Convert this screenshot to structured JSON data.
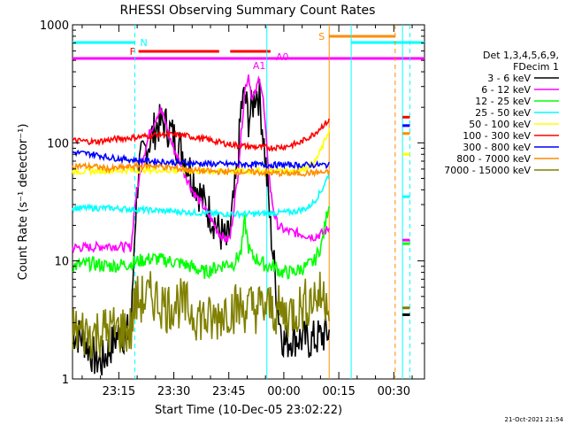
{
  "chart_data": {
    "type": "line",
    "title": "RHESSI Observing Summary Count Rates",
    "xlabel": "Start Time (10-Dec-05 23:02:22)",
    "ylabel": "Count Rate (s⁻¹ detector⁻¹)",
    "y_scale": "log",
    "ylim": [
      1,
      1000
    ],
    "xlim_minutes_from_start": [
      0,
      96
    ],
    "x_ticks": [
      "23:15",
      "23:30",
      "23:45",
      "00:00",
      "00:15",
      "00:30"
    ],
    "y_ticks": [
      "1",
      "10",
      "100",
      "1000"
    ],
    "legend_header": [
      "Det 1,3,4,5,6,9,",
      "FDecim 1"
    ],
    "legend_position": "right",
    "timestamp": "21-Oct-2021 21:54",
    "series": [
      {
        "name": "3 - 6 keV",
        "color": "#000000",
        "points": [
          [
            0,
            2.5
          ],
          [
            3,
            2.2
          ],
          [
            6,
            1.5
          ],
          [
            8,
            1.4
          ],
          [
            12,
            2.3
          ],
          [
            16,
            2.5
          ],
          [
            17,
            20
          ],
          [
            18,
            60
          ],
          [
            20,
            90
          ],
          [
            22,
            120
          ],
          [
            23,
            140
          ],
          [
            25,
            150
          ],
          [
            27,
            120
          ],
          [
            30,
            85
          ],
          [
            33,
            50
          ],
          [
            36,
            30
          ],
          [
            38,
            24
          ],
          [
            40,
            18
          ],
          [
            41,
            16
          ],
          [
            42,
            14
          ],
          [
            43,
            18
          ],
          [
            45,
            60
          ],
          [
            46,
            200
          ],
          [
            47,
            250
          ],
          [
            48,
            160
          ],
          [
            49,
            200
          ],
          [
            50,
            280
          ],
          [
            51,
            240
          ],
          [
            52,
            120
          ],
          [
            53,
            50
          ],
          [
            54,
            20
          ],
          [
            55,
            9
          ],
          [
            56,
            4
          ],
          [
            57,
            2.5
          ],
          [
            58,
            2
          ],
          [
            60,
            2.3
          ],
          [
            62,
            2.2
          ],
          [
            65,
            2.1
          ],
          [
            68,
            2.3
          ],
          [
            70,
            2.5
          ]
        ]
      },
      {
        "name": "6 - 12 keV",
        "color": "#ff00ff",
        "points": [
          [
            0,
            13
          ],
          [
            5,
            13
          ],
          [
            10,
            13.5
          ],
          [
            16,
            13
          ],
          [
            17,
            30
          ],
          [
            19,
            70
          ],
          [
            21,
            120
          ],
          [
            23,
            170
          ],
          [
            24,
            190
          ],
          [
            25,
            160
          ],
          [
            27,
            100
          ],
          [
            30,
            60
          ],
          [
            33,
            38
          ],
          [
            36,
            28
          ],
          [
            38,
            22
          ],
          [
            40,
            17
          ],
          [
            42,
            15
          ],
          [
            43,
            16
          ],
          [
            45,
            50
          ],
          [
            47,
            280
          ],
          [
            48,
            380
          ],
          [
            49,
            230
          ],
          [
            50,
            270
          ],
          [
            51,
            370
          ],
          [
            52,
            230
          ],
          [
            53,
            90
          ],
          [
            54,
            40
          ],
          [
            55,
            25
          ],
          [
            56,
            20
          ],
          [
            58,
            18
          ],
          [
            62,
            17
          ],
          [
            66,
            16
          ],
          [
            68,
            17
          ],
          [
            70,
            19
          ]
        ]
      },
      {
        "name": "12 - 25 keV",
        "color": "#00ff00",
        "points": [
          [
            0,
            9
          ],
          [
            5,
            9.5
          ],
          [
            10,
            9
          ],
          [
            16,
            9.5
          ],
          [
            18,
            10
          ],
          [
            22,
            10.5
          ],
          [
            26,
            10
          ],
          [
            30,
            9.5
          ],
          [
            34,
            8.5
          ],
          [
            36,
            8
          ],
          [
            38,
            8.5
          ],
          [
            40,
            9
          ],
          [
            42,
            9.5
          ],
          [
            44,
            9.5
          ],
          [
            46,
            12
          ],
          [
            47,
            22
          ],
          [
            48,
            13
          ],
          [
            49,
            11
          ],
          [
            51,
            10
          ],
          [
            53,
            9
          ],
          [
            55,
            9
          ],
          [
            57,
            8
          ],
          [
            60,
            8
          ],
          [
            64,
            9
          ],
          [
            66,
            10
          ],
          [
            68,
            14
          ],
          [
            70,
            32
          ]
        ]
      },
      {
        "name": "25 - 50 keV",
        "color": "#00ffff",
        "points": [
          [
            0,
            28
          ],
          [
            10,
            28
          ],
          [
            20,
            27
          ],
          [
            30,
            26
          ],
          [
            40,
            25
          ],
          [
            50,
            25
          ],
          [
            60,
            26
          ],
          [
            64,
            28
          ],
          [
            66,
            32
          ],
          [
            68,
            40
          ],
          [
            70,
            55
          ]
        ]
      },
      {
        "name": "50 - 100 keV",
        "color": "#ffff00",
        "points": [
          [
            0,
            57
          ],
          [
            10,
            58
          ],
          [
            20,
            59
          ],
          [
            30,
            58
          ],
          [
            40,
            57
          ],
          [
            50,
            58
          ],
          [
            60,
            58
          ],
          [
            63,
            60
          ],
          [
            66,
            68
          ],
          [
            68,
            90
          ],
          [
            70,
            130
          ]
        ]
      },
      {
        "name": "100 - 300 keV",
        "color": "#ff0000",
        "points": [
          [
            0,
            105
          ],
          [
            6,
            102
          ],
          [
            12,
            108
          ],
          [
            18,
            112
          ],
          [
            24,
            118
          ],
          [
            30,
            116
          ],
          [
            36,
            108
          ],
          [
            42,
            98
          ],
          [
            48,
            93
          ],
          [
            54,
            91
          ],
          [
            58,
            93
          ],
          [
            62,
            100
          ],
          [
            66,
            120
          ],
          [
            68,
            138
          ],
          [
            70,
            155
          ]
        ]
      },
      {
        "name": "300 - 800 keV",
        "color": "#0000ff",
        "points": [
          [
            0,
            83
          ],
          [
            6,
            80
          ],
          [
            10,
            75
          ],
          [
            16,
            72
          ],
          [
            22,
            70
          ],
          [
            28,
            68
          ],
          [
            34,
            67
          ],
          [
            40,
            66
          ],
          [
            46,
            66
          ],
          [
            52,
            65
          ],
          [
            58,
            65
          ],
          [
            62,
            65
          ],
          [
            66,
            65
          ],
          [
            70,
            65
          ]
        ]
      },
      {
        "name": "800 - 7000 keV",
        "color": "#ff8c00",
        "points": [
          [
            0,
            64
          ],
          [
            6,
            63
          ],
          [
            10,
            60
          ],
          [
            16,
            63
          ],
          [
            22,
            64
          ],
          [
            28,
            61
          ],
          [
            34,
            58
          ],
          [
            40,
            57
          ],
          [
            46,
            57
          ],
          [
            52,
            56
          ],
          [
            58,
            55
          ],
          [
            62,
            55
          ],
          [
            66,
            56
          ],
          [
            70,
            56
          ]
        ]
      },
      {
        "name": "7000 - 15000 keV",
        "color": "#808000",
        "points": [
          [
            0,
            2.6
          ],
          [
            5,
            2.4
          ],
          [
            10,
            2.6
          ],
          [
            16,
            2.6
          ],
          [
            17,
            4.5
          ],
          [
            22,
            5
          ],
          [
            26,
            4
          ],
          [
            28,
            4.6
          ],
          [
            34,
            3.5
          ],
          [
            38,
            3
          ],
          [
            42,
            4
          ],
          [
            46,
            4
          ],
          [
            50,
            4
          ],
          [
            54,
            4
          ],
          [
            58,
            3.5
          ],
          [
            62,
            4
          ],
          [
            66,
            5
          ],
          [
            70,
            5
          ]
        ]
      }
    ],
    "post_gap_values": {
      "x_minutes": [
        90,
        92
      ],
      "3 - 6 keV": 3.5,
      "6 - 12 keV": 15,
      "12 - 25 keV": 14,
      "25 - 50 keV": 35,
      "50 - 100 keV": 80,
      "100 - 300 keV": 165,
      "300 - 800 keV": 140,
      "800 - 7000 keV": 120,
      "7000 - 15000 keV": 4
    },
    "annotations": [
      {
        "label": "N",
        "color": "#00ffff",
        "kind": "night",
        "start": 0,
        "end": 17
      },
      {
        "label": "",
        "color": "#00ffff",
        "kind": "night",
        "start": 76,
        "end": 96
      },
      {
        "label": "F",
        "color": "#ff0000",
        "kind": "flare",
        "segments": [
          [
            18,
            40
          ],
          [
            43,
            54
          ]
        ]
      },
      {
        "label": "A0",
        "color": "#ff00ff",
        "kind": "attenuator",
        "start": 0,
        "end": 55
      },
      {
        "label": "A1",
        "color": "#ff00ff",
        "kind": "attenuator",
        "start": 54,
        "end": 96
      },
      {
        "label": "S",
        "color": "#ff8c00",
        "kind": "saa",
        "start": 70,
        "end": 88
      }
    ],
    "vlines": [
      {
        "x": 17,
        "color": "#00ffff",
        "style": "dashed"
      },
      {
        "x": 53,
        "color": "#00ffff",
        "style": "solid"
      },
      {
        "x": 70,
        "color": "#ff8c00",
        "style": "solid"
      },
      {
        "x": 76,
        "color": "#00ffff",
        "style": "solid"
      },
      {
        "x": 88,
        "color": "#ff8c00",
        "style": "dashed"
      },
      {
        "x": 90,
        "color": "#00ffff",
        "style": "solid"
      },
      {
        "x": 92,
        "color": "#00ffff",
        "style": "dashed"
      }
    ]
  }
}
